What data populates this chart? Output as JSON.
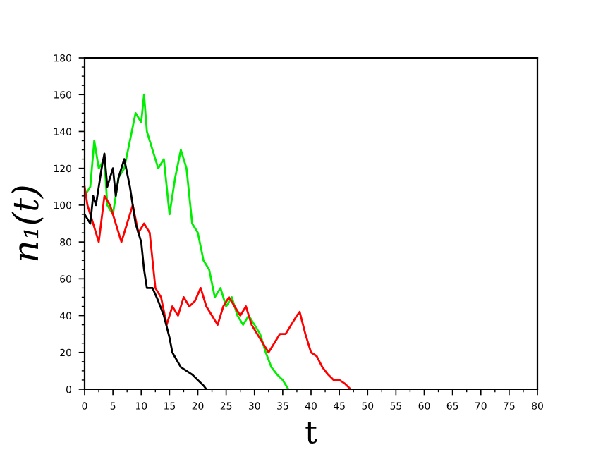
{
  "chart_data": {
    "type": "line",
    "xlabel": "t",
    "ylabel": "n₁(t)",
    "xlim": [
      0,
      80
    ],
    "ylim": [
      0,
      180
    ],
    "xticks": [
      0,
      5,
      10,
      15,
      20,
      25,
      30,
      35,
      40,
      45,
      50,
      55,
      60,
      65,
      70,
      75,
      80
    ],
    "yticks": [
      0,
      20,
      40,
      60,
      80,
      100,
      120,
      140,
      160,
      180
    ],
    "grid": false,
    "legend": false,
    "line_style": "solid",
    "series": [
      {
        "color": "#00ee00",
        "x": [
          0,
          1,
          1.7,
          2.5,
          3.5,
          4,
          5,
          6,
          7,
          8,
          9,
          10,
          10.5,
          11,
          12,
          13,
          14,
          15,
          16,
          17,
          18,
          19,
          20,
          21,
          22,
          23,
          24,
          25,
          26,
          27,
          28,
          29,
          30,
          31,
          32,
          33,
          34,
          35,
          36
        ],
        "values": [
          105,
          110,
          135,
          120,
          125,
          100,
          95,
          115,
          120,
          135,
          150,
          145,
          160,
          140,
          130,
          120,
          125,
          95,
          115,
          130,
          120,
          90,
          85,
          70,
          65,
          50,
          55,
          45,
          50,
          40,
          35,
          40,
          35,
          30,
          20,
          12,
          8,
          5,
          0
        ]
      },
      {
        "color": "#ff0000",
        "x": [
          0,
          0.5,
          1.5,
          2.5,
          3.5,
          4.5,
          5.5,
          6.5,
          7.5,
          8.5,
          9.5,
          10.5,
          11.5,
          12.5,
          13.5,
          14.5,
          15.5,
          16.5,
          17.5,
          18.5,
          19.5,
          20.5,
          21.5,
          22.5,
          23.5,
          24.5,
          25.5,
          26.5,
          27.5,
          28.5,
          29.5,
          30.5,
          31.5,
          32.5,
          33.5,
          34.5,
          35.5,
          36.5,
          37.5,
          38,
          39,
          40,
          41,
          42,
          43,
          44,
          45,
          46,
          47
        ],
        "values": [
          110,
          100,
          90,
          80,
          105,
          100,
          90,
          80,
          90,
          100,
          85,
          90,
          85,
          55,
          50,
          35,
          45,
          40,
          50,
          45,
          48,
          55,
          45,
          40,
          35,
          45,
          50,
          45,
          40,
          45,
          35,
          30,
          25,
          20,
          25,
          30,
          30,
          35,
          40,
          42,
          30,
          20,
          18,
          12,
          8,
          5,
          5,
          3,
          0
        ]
      },
      {
        "color": "#000000",
        "x": [
          0,
          1,
          1.5,
          2,
          3,
          3.5,
          4,
          5,
          5.5,
          6,
          7,
          8,
          9,
          10,
          10.5,
          11,
          12,
          13,
          14,
          15,
          15.5,
          17,
          18,
          19,
          20,
          21,
          21.5
        ],
        "values": [
          95,
          90,
          105,
          100,
          120,
          128,
          110,
          120,
          105,
          115,
          125,
          110,
          90,
          80,
          65,
          55,
          55,
          48,
          40,
          28,
          20,
          12,
          10,
          8,
          5,
          2,
          0
        ]
      }
    ]
  }
}
